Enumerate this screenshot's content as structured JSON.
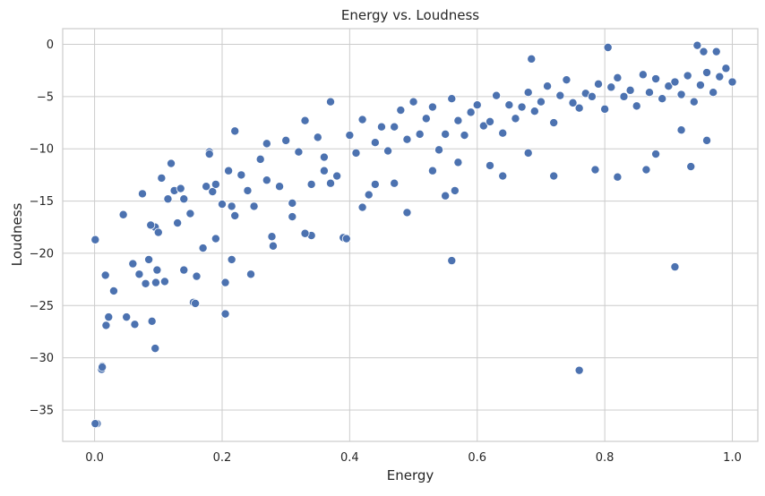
{
  "chart_data": {
    "type": "scatter",
    "title": "Energy vs. Loudness",
    "xlabel": "Energy",
    "ylabel": "Loudness",
    "xlim": [
      -0.05,
      1.04
    ],
    "ylim": [
      -38,
      1.5
    ],
    "xticks": [
      0.0,
      0.2,
      0.4,
      0.6,
      0.8,
      1.0
    ],
    "xtick_labels": [
      "0.0",
      "0.2",
      "0.4",
      "0.6",
      "0.8",
      "1.0"
    ],
    "yticks": [
      0,
      -5,
      -10,
      -15,
      -20,
      -25,
      -30,
      -35
    ],
    "ytick_labels": [
      "0",
      "−5",
      "−10",
      "−15",
      "−20",
      "−25",
      "−30",
      "−35"
    ],
    "grid": true,
    "point_color": "#4c72b0",
    "series": [
      {
        "x": [
          0.001,
          0.004,
          0.011,
          0.012,
          0.017,
          0.022,
          0.018,
          0.03,
          0.045,
          0.05,
          0.06,
          0.07,
          0.08,
          0.085,
          0.09,
          0.095,
          0.095,
          0.098,
          0.1,
          0.105,
          0.11,
          0.12,
          0.125,
          0.13,
          0.135,
          0.14,
          0.15,
          0.155,
          0.16,
          0.17,
          0.175,
          0.18,
          0.185,
          0.19,
          0.2,
          0.205,
          0.21,
          0.215,
          0.22,
          0.23,
          0.24,
          0.245,
          0.26,
          0.27,
          0.28,
          0.29,
          0.3,
          0.31,
          0.32,
          0.33,
          0.34,
          0.35,
          0.36,
          0.37,
          0.38,
          0.39,
          0.4,
          0.41,
          0.42,
          0.43,
          0.44,
          0.45,
          0.46,
          0.47,
          0.48,
          0.49,
          0.5,
          0.51,
          0.52,
          0.53,
          0.54,
          0.55,
          0.56,
          0.57,
          0.58,
          0.59,
          0.6,
          0.61,
          0.62,
          0.63,
          0.64,
          0.65,
          0.66,
          0.67,
          0.68,
          0.69,
          0.7,
          0.71,
          0.72,
          0.73,
          0.74,
          0.75,
          0.76,
          0.77,
          0.78,
          0.79,
          0.8,
          0.81,
          0.82,
          0.83,
          0.84,
          0.85,
          0.86,
          0.87,
          0.88,
          0.89,
          0.9,
          0.91,
          0.92,
          0.93,
          0.94,
          0.95,
          0.96,
          0.97,
          0.98,
          0.99,
          1.0,
          0.935,
          0.805,
          0.685,
          0.76,
          0.91,
          0.56,
          0.49,
          0.395,
          0.34,
          0.215,
          0.205,
          0.096,
          0.088,
          0.045,
          0.012,
          0.001,
          0.063,
          0.14,
          0.158,
          0.22,
          0.278,
          0.37,
          0.42,
          0.55,
          0.565,
          0.64,
          0.72,
          0.785,
          0.865,
          0.945,
          0.955,
          0.975,
          0.31,
          0.25,
          0.18,
          0.33,
          0.44,
          0.57,
          0.68,
          0.82,
          0.88,
          0.92,
          0.96,
          0.62,
          0.53,
          0.47,
          0.36,
          0.27,
          0.19,
          0.115,
          0.075
        ],
        "y": [
          -18.7,
          -36.3,
          -31.1,
          -30.8,
          -22.1,
          -26.1,
          -26.9,
          -23.6,
          -16.3,
          -26.1,
          -21.0,
          -22.0,
          -22.9,
          -20.6,
          -26.5,
          -29.1,
          -17.5,
          -21.6,
          -18.0,
          -12.8,
          -22.7,
          -11.4,
          -14.0,
          -17.1,
          -13.8,
          -21.6,
          -16.2,
          -24.7,
          -22.2,
          -19.5,
          -13.6,
          -10.3,
          -14.1,
          -18.6,
          -15.3,
          -25.8,
          -12.1,
          -15.5,
          -8.3,
          -12.5,
          -14.0,
          -22.0,
          -11.0,
          -9.5,
          -19.3,
          -13.6,
          -9.2,
          -16.5,
          -10.3,
          -7.3,
          -13.4,
          -8.9,
          -10.8,
          -5.5,
          -12.6,
          -18.5,
          -8.7,
          -10.4,
          -7.2,
          -14.4,
          -9.4,
          -7.9,
          -10.2,
          -7.9,
          -6.3,
          -9.1,
          -5.5,
          -8.6,
          -7.1,
          -6.0,
          -10.1,
          -8.6,
          -5.2,
          -7.3,
          -8.7,
          -6.5,
          -5.8,
          -7.8,
          -7.4,
          -4.9,
          -8.5,
          -5.8,
          -7.1,
          -6.0,
          -4.6,
          -6.4,
          -5.5,
          -4.0,
          -7.5,
          -4.9,
          -3.4,
          -5.6,
          -6.1,
          -4.7,
          -5.0,
          -3.8,
          -6.2,
          -4.1,
          -3.2,
          -5.0,
          -4.4,
          -5.9,
          -2.9,
          -4.6,
          -3.3,
          -5.2,
          -4.0,
          -3.6,
          -4.8,
          -3.0,
          -5.5,
          -3.9,
          -2.7,
          -4.6,
          -3.1,
          -2.3,
          -3.6,
          -11.7,
          -0.3,
          -1.4,
          -31.2,
          -21.3,
          -20.7,
          -16.1,
          -18.6,
          -18.3,
          -20.6,
          -22.8,
          -22.8,
          -17.3,
          -16.3,
          -30.9,
          -36.3,
          -26.8,
          -14.8,
          -24.8,
          -16.4,
          -18.4,
          -13.3,
          -15.6,
          -14.5,
          -14.0,
          -12.6,
          -12.6,
          -12.0,
          -12.0,
          -0.1,
          -0.7,
          -0.7,
          -15.2,
          -15.5,
          -10.5,
          -18.1,
          -13.4,
          -11.3,
          -10.4,
          -12.7,
          -10.5,
          -8.2,
          -9.2,
          -11.6,
          -12.1,
          -13.3,
          -12.1,
          -13.0,
          -13.4,
          -14.8,
          -14.3
        ]
      }
    ]
  }
}
